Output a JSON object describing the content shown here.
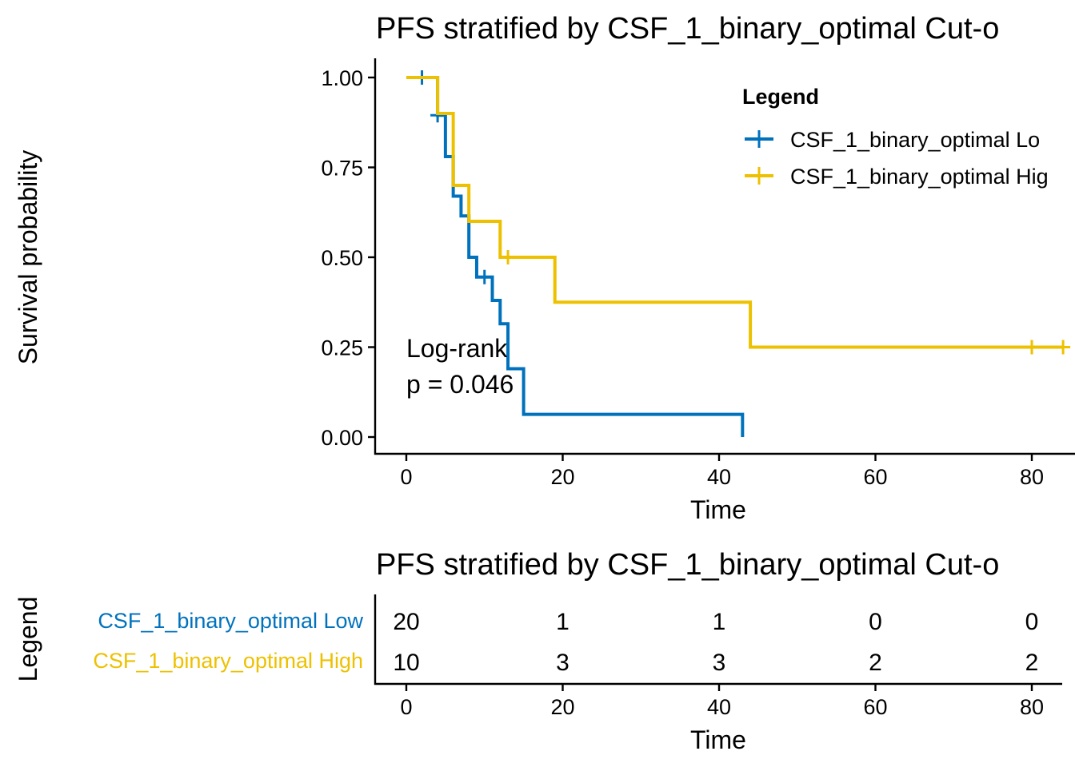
{
  "colors": {
    "low": "#0072BD",
    "high": "#EDC100",
    "axis": "#000000"
  },
  "km": {
    "title": "PFS stratified by CSF_1_binary_optimal Cut-o",
    "xlabel": "Time",
    "ylabel": "Survival probability",
    "xticks": [
      "0",
      "20",
      "40",
      "60",
      "80"
    ],
    "yticks": [
      "0.00",
      "0.25",
      "0.50",
      "0.75",
      "1.00"
    ],
    "legend_title": "Legend",
    "legend_entries": [
      "CSF_1_binary_optimal Lo",
      "CSF_1_binary_optimal Hig"
    ],
    "annotation_line1": "Log-rank",
    "annotation_line2": "p = 0.046"
  },
  "risk": {
    "title": "PFS stratified by CSF_1_binary_optimal Cut-o",
    "xlabel": "Time",
    "ylabel": "Legend",
    "xticks": [
      "0",
      "20",
      "40",
      "60",
      "80"
    ],
    "strata": [
      "CSF_1_binary_optimal Low",
      "CSF_1_binary_optimal High"
    ],
    "counts": [
      [
        "20",
        "1",
        "1",
        "0",
        "0"
      ],
      [
        "10",
        "3",
        "3",
        "2",
        "2"
      ]
    ]
  },
  "chart_data": {
    "type": "line",
    "chart_kind": "kaplan-meier step",
    "title": "PFS stratified by CSF_1_binary_optimal Cut-o",
    "xlabel": "Time",
    "ylabel": "Survival probability",
    "xlim": [
      -4,
      84
    ],
    "ylim": [
      0,
      1
    ],
    "grid": false,
    "legend_position": "top-right",
    "series": [
      {
        "name": "CSF_1_binary_optimal Low",
        "color": "#0072BD",
        "steps": [
          [
            0,
            1.0
          ],
          [
            4,
            0.895
          ],
          [
            5,
            0.78
          ],
          [
            6,
            0.67
          ],
          [
            7,
            0.615
          ],
          [
            8,
            0.5
          ],
          [
            9,
            0.445
          ],
          [
            11,
            0.38
          ],
          [
            12,
            0.315
          ],
          [
            13,
            0.19
          ],
          [
            15,
            0.063
          ],
          [
            43,
            0.0
          ]
        ],
        "censored": [
          [
            2,
            1.0
          ],
          [
            4,
            0.895
          ],
          [
            10,
            0.445
          ]
        ]
      },
      {
        "name": "CSF_1_binary_optimal High",
        "color": "#EDC100",
        "steps": [
          [
            0,
            1.0
          ],
          [
            4,
            0.9
          ],
          [
            6,
            0.7
          ],
          [
            8,
            0.6
          ],
          [
            12,
            0.5
          ],
          [
            19,
            0.375
          ],
          [
            44,
            0.25
          ],
          [
            84,
            0.25
          ]
        ],
        "censored": [
          [
            13,
            0.5
          ],
          [
            80,
            0.25
          ],
          [
            84,
            0.25
          ]
        ]
      }
    ],
    "annotation": "Log-rank p = 0.046",
    "risk_table": {
      "times": [
        0,
        20,
        40,
        60,
        80
      ],
      "rows": [
        {
          "name": "CSF_1_binary_optimal Low",
          "counts": [
            20,
            1,
            1,
            0,
            0
          ]
        },
        {
          "name": "CSF_1_binary_optimal High",
          "counts": [
            10,
            3,
            3,
            2,
            2
          ]
        }
      ]
    }
  }
}
